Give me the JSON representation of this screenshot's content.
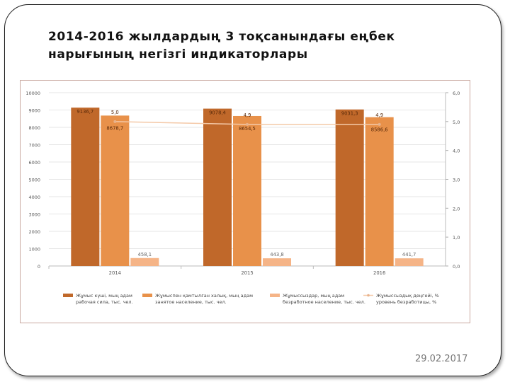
{
  "slide": {
    "title": "2014-2016 жылдардың 3 тоқсанындағы еңбек нарығының негізгі индикаторлары",
    "date": "29.02.2017"
  },
  "chart_data": {
    "type": "bar",
    "categories": [
      "2014",
      "2015",
      "2016"
    ],
    "series": [
      {
        "name": "Жұмыс күші, мың адам / рабочая сила, тыс. чел.",
        "values": [
          9136.7,
          9078.4,
          9031.3
        ],
        "labels": [
          "9136,7",
          "9078,4",
          "9031,3"
        ],
        "color": "#c0682a",
        "axis": "left"
      },
      {
        "name": "Жұмыспен қамтылған халық, мың адам / занятое население, тыс. чел.",
        "values": [
          8678.7,
          8654.5,
          8586.6
        ],
        "labels": [
          "8678,7",
          "8654,5",
          "8586,6"
        ],
        "color": "#e8914a",
        "axis": "left"
      },
      {
        "name": "Жұмыссыздар, мың адам / безработное население, тыс. чел.",
        "values": [
          458.1,
          443.8,
          441.7
        ],
        "labels": [
          "458,1",
          "443,8",
          "441,7"
        ],
        "color": "#f5b487",
        "axis": "left"
      },
      {
        "name": "Жұмыссыздық деңгейі, % / уровень безработицы, %",
        "type": "line",
        "values": [
          5.0,
          4.9,
          4.9
        ],
        "labels": [
          "5,0",
          "4,9",
          "4,9"
        ],
        "color": "#f4c9a8",
        "axis": "right"
      }
    ],
    "y_left": {
      "min": 0,
      "max": 10000,
      "ticks": [
        "0",
        "1000",
        "2000",
        "3000",
        "4000",
        "5000",
        "6000",
        "7000",
        "8000",
        "9000",
        "10000"
      ]
    },
    "y_right": {
      "min": 0,
      "max": 6,
      "ticks": [
        "0,0",
        "1,0",
        "2,0",
        "3,0",
        "4,0",
        "5,0",
        "6,0"
      ]
    },
    "legend": [
      {
        "line1": "Жұмыс күші, мың адам",
        "line2": "рабочая сила, тыс. чел."
      },
      {
        "line1": "Жұмыспен қамтылған халық, мың адам",
        "line2": "занятое население, тыс. чел."
      },
      {
        "line1": "Жұмыссыздар, мың адам",
        "line2": "безработное население, тыс. чел."
      },
      {
        "line1": "Жұмыссыздық деңгейі, %",
        "line2": "уровень безработицы, %"
      }
    ],
    "legend_position": "bottom",
    "grid": true
  }
}
